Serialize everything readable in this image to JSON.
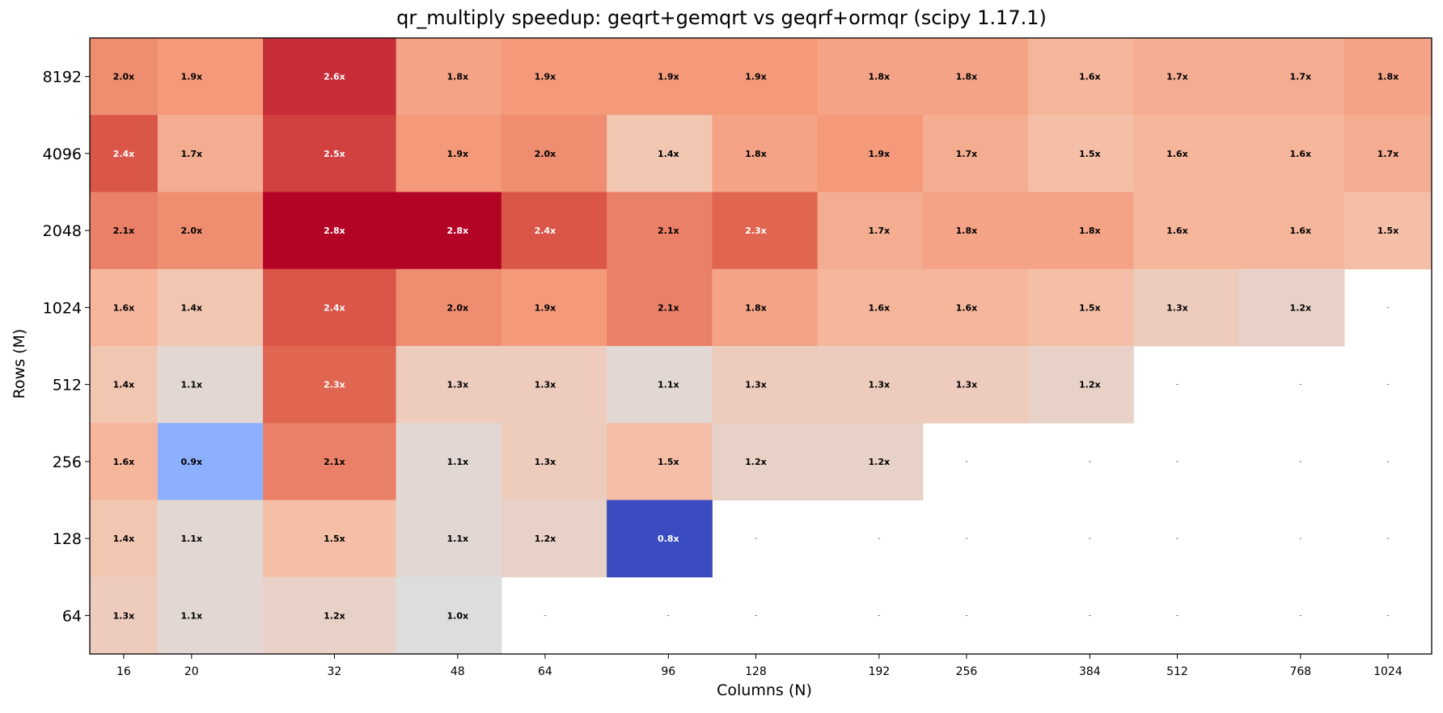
{
  "chart_data": {
    "type": "heatmap",
    "title": "qr_multiply speedup: geqrt+gemqrt vs geqrf+ormqr (scipy 1.17.1)",
    "xlabel": "Columns (N)",
    "ylabel": "Rows (M)",
    "columns": [
      "16",
      "20",
      "32",
      "48",
      "64",
      "96",
      "128",
      "192",
      "256",
      "384",
      "512",
      "768",
      "1024"
    ],
    "rows": [
      "8192",
      "4096",
      "2048",
      "1024",
      "512",
      "256",
      "128",
      "64"
    ],
    "values": [
      [
        2.0,
        1.9,
        2.6,
        1.8,
        1.9,
        1.9,
        1.9,
        1.8,
        1.8,
        1.6,
        1.7,
        1.7,
        1.8
      ],
      [
        2.4,
        1.7,
        2.5,
        1.9,
        2.0,
        1.4,
        1.8,
        1.9,
        1.7,
        1.5,
        1.6,
        1.6,
        1.7
      ],
      [
        2.1,
        2.0,
        2.8,
        2.8,
        2.4,
        2.1,
        2.3,
        1.7,
        1.8,
        1.8,
        1.6,
        1.6,
        1.5
      ],
      [
        1.6,
        1.4,
        2.4,
        2.0,
        1.9,
        2.1,
        1.8,
        1.6,
        1.6,
        1.5,
        1.3,
        1.2,
        null
      ],
      [
        1.4,
        1.1,
        2.3,
        1.3,
        1.3,
        1.1,
        1.3,
        1.3,
        1.3,
        1.2,
        null,
        null,
        null
      ],
      [
        1.6,
        0.9,
        2.1,
        1.1,
        1.3,
        1.5,
        1.2,
        1.2,
        null,
        null,
        null,
        null,
        null
      ],
      [
        1.4,
        1.1,
        1.5,
        1.1,
        1.2,
        0.8,
        null,
        null,
        null,
        null,
        null,
        null,
        null
      ],
      [
        1.3,
        1.1,
        1.2,
        1.0,
        null,
        null,
        null,
        null,
        null,
        null,
        null,
        null,
        null
      ]
    ],
    "value_suffix": "x",
    "missing_label": "-",
    "colormap": "coolwarm",
    "color_range": [
      0.8,
      2.8
    ],
    "center": 1.0
  }
}
